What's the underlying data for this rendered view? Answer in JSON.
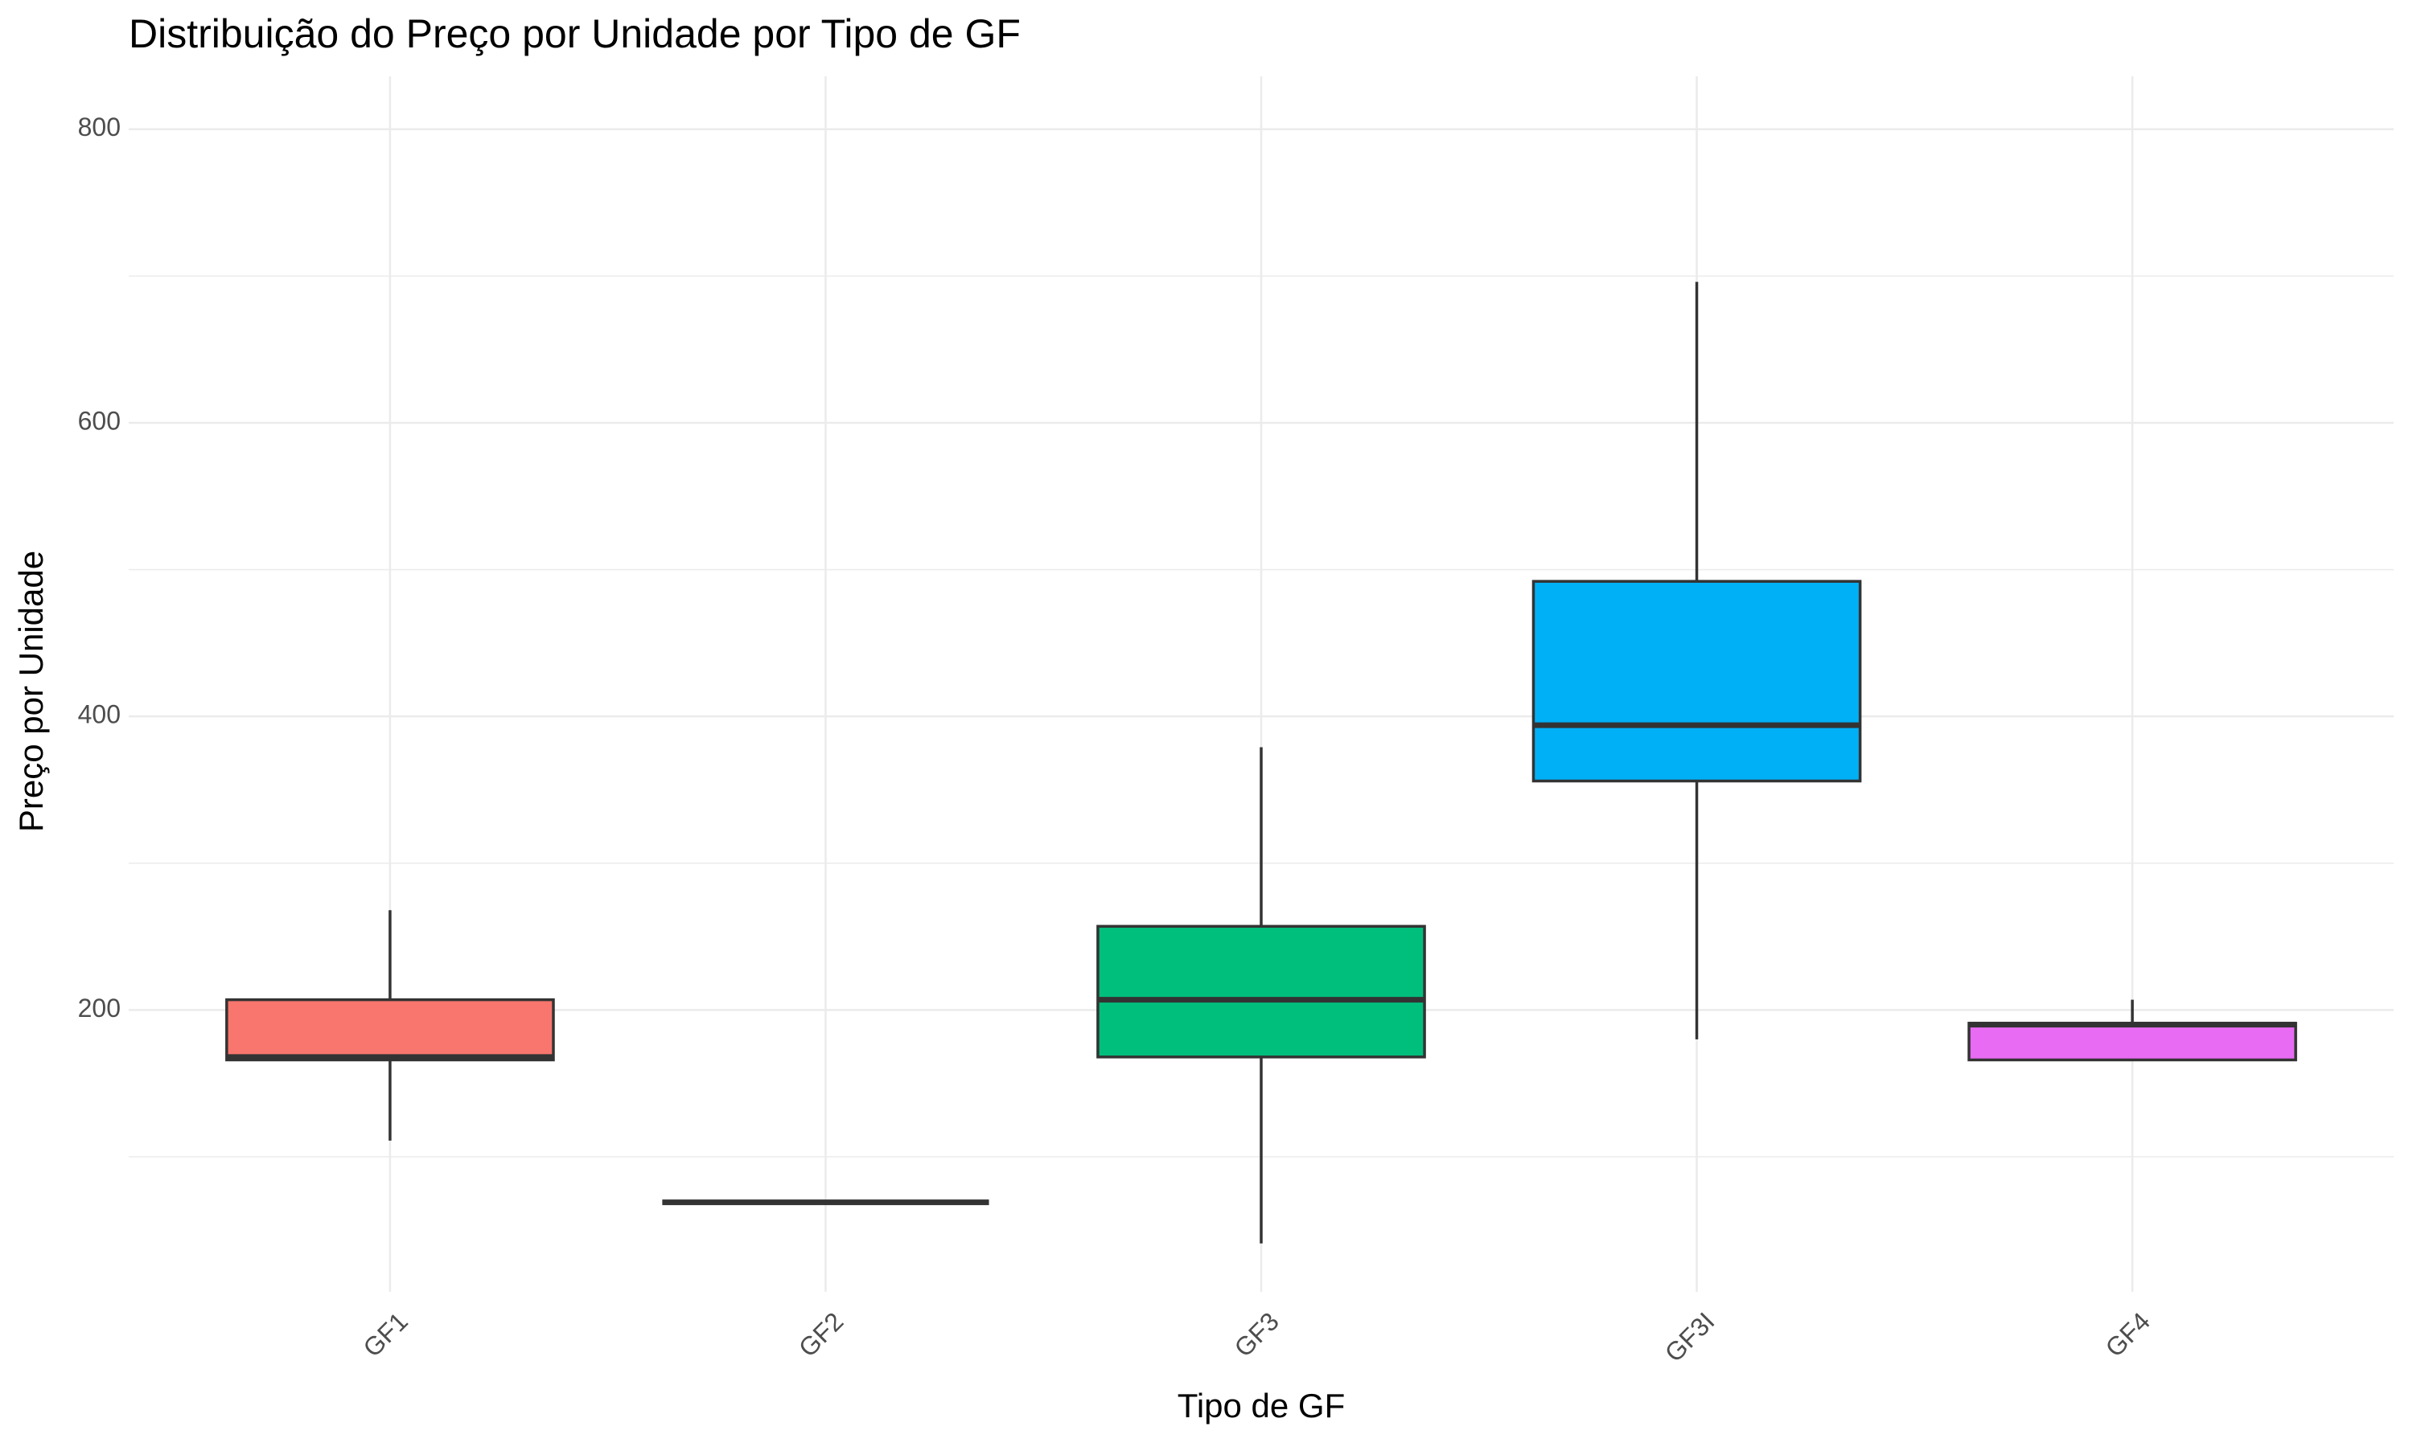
{
  "chart_data": {
    "type": "boxplot",
    "title": "Distribuição do Preço por Unidade por Tipo de GF",
    "x_label": "Tipo de GF",
    "y_label": "Preço por Unidade",
    "categories": [
      "GF1",
      "GF2",
      "GF3",
      "GF3I",
      "GF4"
    ],
    "colors": [
      "#F8766D",
      "#A3A500",
      "#00BF7D",
      "#00B0F6",
      "#E76BF3"
    ],
    "boxes": [
      {
        "min": 111,
        "q1": 166,
        "median": 168,
        "q3": 207,
        "max": 268
      },
      {
        "min": 69,
        "q1": 69,
        "median": 69,
        "q3": 69,
        "max": 69
      },
      {
        "min": 41,
        "q1": 168,
        "median": 207,
        "q3": 257,
        "max": 379
      },
      {
        "min": 180,
        "q1": 356,
        "median": 394,
        "q3": 492,
        "max": 696
      },
      {
        "min": 166,
        "q1": 166,
        "median": 190,
        "q3": 191,
        "max": 207
      }
    ],
    "ylim": [
      8,
      836
    ],
    "yticks": [
      200,
      400,
      600,
      800
    ],
    "minor_yticks": [
      100,
      300,
      500,
      700
    ],
    "grid": true
  }
}
